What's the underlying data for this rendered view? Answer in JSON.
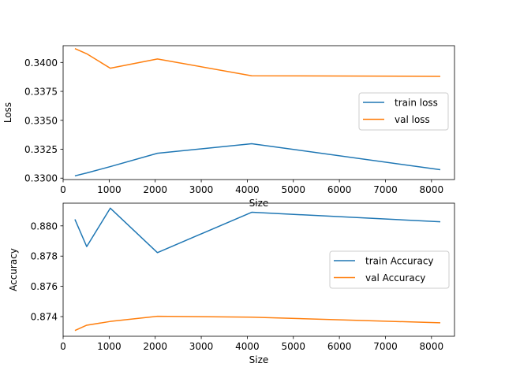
{
  "chart_data": [
    {
      "type": "line",
      "xlabel": "Size",
      "ylabel": "Loss",
      "xlim": [
        0,
        8500
      ],
      "ylim": [
        0.32988,
        0.34145
      ],
      "x_ticks": [
        0,
        1000,
        2000,
        3000,
        4000,
        5000,
        6000,
        7000,
        8000
      ],
      "y_ticks": [
        0.33,
        0.3325,
        0.335,
        0.3375,
        0.34
      ],
      "y_tick_labels": [
        "0.3300",
        "0.3325",
        "0.3350",
        "0.3375",
        "0.3400"
      ],
      "legend_position": "center-right",
      "grid": false,
      "series": [
        {
          "name": "train loss",
          "color": "#1f77b4",
          "x": [
            256,
            512,
            1024,
            2048,
            4096,
            8192
          ],
          "values": [
            0.3302,
            0.33045,
            0.331,
            0.33215,
            0.33298,
            0.33073
          ]
        },
        {
          "name": "val loss",
          "color": "#ff7f0e",
          "x": [
            256,
            512,
            1024,
            2048,
            4096,
            8192
          ],
          "values": [
            0.3412,
            0.34075,
            0.3395,
            0.3403,
            0.33885,
            0.3388
          ]
        }
      ]
    },
    {
      "type": "line",
      "xlabel": "Size",
      "ylabel": "Accuracy",
      "xlim": [
        0,
        8500
      ],
      "ylim": [
        0.8727,
        0.8815
      ],
      "x_ticks": [
        0,
        1000,
        2000,
        3000,
        4000,
        5000,
        6000,
        7000,
        8000
      ],
      "y_ticks": [
        0.874,
        0.876,
        0.878,
        0.88
      ],
      "y_tick_labels": [
        "0.874",
        "0.876",
        "0.878",
        "0.880"
      ],
      "legend_position": "center-right",
      "grid": false,
      "series": [
        {
          "name": "train Accuracy",
          "color": "#1f77b4",
          "x": [
            256,
            512,
            1024,
            2048,
            4096,
            8192
          ],
          "values": [
            0.88043,
            0.87863,
            0.88117,
            0.87823,
            0.8809,
            0.88027
          ]
        },
        {
          "name": "val Accuracy",
          "color": "#ff7f0e",
          "x": [
            256,
            512,
            1024,
            2048,
            4096,
            8192
          ],
          "values": [
            0.87308,
            0.87343,
            0.87368,
            0.87402,
            0.87396,
            0.87359
          ]
        }
      ]
    }
  ]
}
